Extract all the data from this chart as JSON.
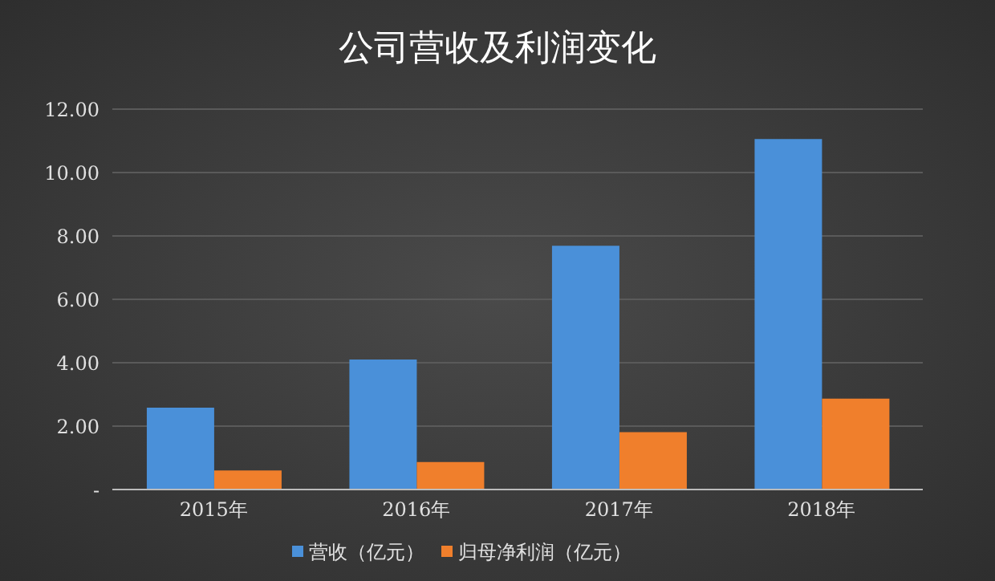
{
  "chart_data": {
    "type": "bar",
    "title": "公司营收及利润变化",
    "categories": [
      "2015年",
      "2016年",
      "2017年",
      "2018年"
    ],
    "series": [
      {
        "name": "营收（亿元）",
        "color": "#4a90d9",
        "values": [
          2.58,
          4.1,
          7.69,
          11.06
        ]
      },
      {
        "name": "归母净利润（亿元）",
        "color": "#f07f2c",
        "values": [
          0.6,
          0.87,
          1.81,
          2.87
        ]
      }
    ],
    "ylim": [
      0,
      12
    ],
    "yticks": [
      {
        "value": 0,
        "label": "-"
      },
      {
        "value": 2,
        "label": "2.00"
      },
      {
        "value": 4,
        "label": "4.00"
      },
      {
        "value": 6,
        "label": "6.00"
      },
      {
        "value": 8,
        "label": "8.00"
      },
      {
        "value": 10,
        "label": "10.00"
      },
      {
        "value": 12,
        "label": "12.00"
      }
    ],
    "grid": "y",
    "legend": "bottom"
  }
}
